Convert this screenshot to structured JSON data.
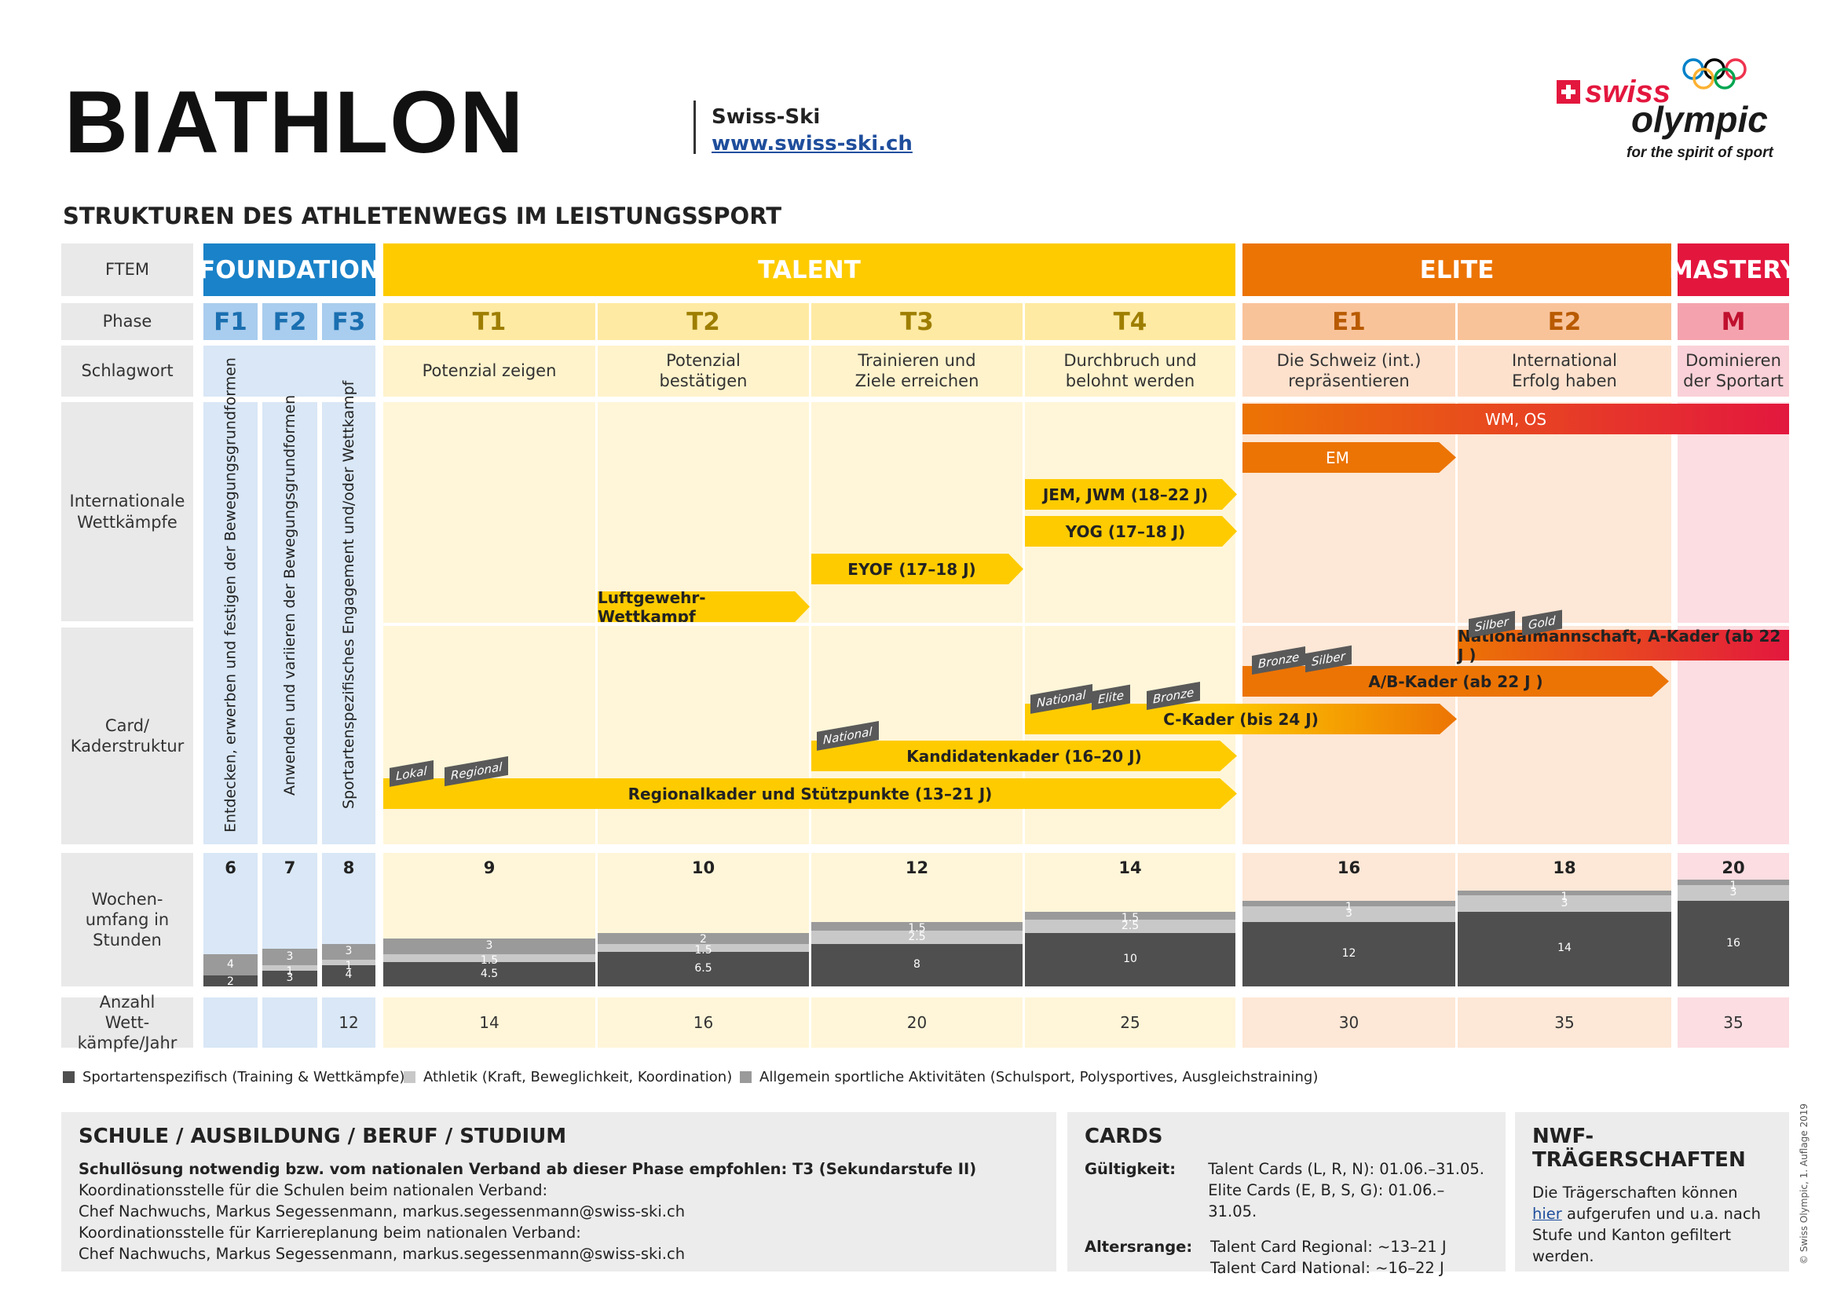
{
  "header": {
    "title": "BIATHLON",
    "org": "Swiss-Ski",
    "url": "www.swiss-ski.ch",
    "logo_swiss": "swiss",
    "logo_olympic": "olympic",
    "logo_tagline": "for the spirit of sport",
    "subtitle": "STRUKTUREN DES ATHLETENWEGS IM LEISTUNGSSPORT"
  },
  "row_labels": {
    "ftem": "FTEM",
    "phase": "Phase",
    "keyword": "Schlagwort",
    "international": "Internationale Wettkämpfe",
    "card": "Card/ Kaderstruktur",
    "weekly": "Wochen- umfang in Stunden",
    "competitions": "Anzahl Wett- kämpfe/Jahr"
  },
  "ftem": {
    "foundation": "FOUNDATION",
    "talent": "TALENT",
    "elite": "ELITE",
    "mastery": "MASTERY"
  },
  "phases": [
    "F1",
    "F2",
    "F3",
    "T1",
    "T2",
    "T3",
    "T4",
    "E1",
    "E2",
    "M"
  ],
  "keywords": {
    "T1": "Potenzial zeigen",
    "T2": "Potenzial bestätigen",
    "T3": "Trainieren und Ziele erreichen",
    "T4": "Durchbruch und belohnt werden",
    "E1": "Die Schweiz (int.) repräsentieren",
    "E2": "International Erfolg haben",
    "M": "Dominieren der Sportart"
  },
  "foundation_text": {
    "F1": "Entdecken, erwerben und festigen der Bewegungsgrundformen",
    "F2": "Anwenden und variieren der Bewegungsgrundformen",
    "F3": "Sportartenspezifisches Engagement und/oder Wettkampf"
  },
  "international_bars": {
    "wm": "WM, OS",
    "em": "EM",
    "jem": "JEM, JWM (18–22 J)",
    "yog": "YOG (17–18 J)",
    "eyof": "EYOF (17–18 J)",
    "luftgewehr": "Luftgewehr-Wettkampf"
  },
  "card_bars": {
    "national_team": "Nationalmannschaft, A-Kader (ab 22 J )",
    "ab": "A/B-Kader (ab 22 J )",
    "c": "C-Kader (bis 24 J)",
    "kandidaten": "Kandidatenkader (16–20 J)",
    "regional": "Regionalkader und Stützpunkte (13–21 J)"
  },
  "card_tags": {
    "silber1": "Silber",
    "gold": "Gold",
    "bronze1": "Bronze",
    "silber2": "Silber",
    "national1": "National",
    "elite": "Elite",
    "bronze2": "Bronze",
    "national2": "National",
    "lokal": "Lokal",
    "regional": "Regional"
  },
  "weekly_hours": {
    "F1": {
      "total": "6",
      "a": "2",
      "b": "",
      "c": "4"
    },
    "F2": {
      "total": "7",
      "a": "3",
      "b": "1",
      "c": "3"
    },
    "F3": {
      "total": "8",
      "a": "4",
      "b": "1",
      "c": "3"
    },
    "T1": {
      "total": "9",
      "a": "4.5",
      "b": "1.5",
      "c": "3"
    },
    "T2": {
      "total": "10",
      "a": "6.5",
      "b": "1.5",
      "c": "2"
    },
    "T3": {
      "total": "12",
      "a": "8",
      "b": "2.5",
      "c": "1.5"
    },
    "T4": {
      "total": "14",
      "a": "10",
      "b": "2.5",
      "c": "1.5"
    },
    "E1": {
      "total": "16",
      "a": "12",
      "b": "3",
      "c": "1"
    },
    "E2": {
      "total": "18",
      "a": "14",
      "b": "3",
      "c": "1"
    },
    "M": {
      "total": "20",
      "a": "16",
      "b": "3",
      "c": "1"
    }
  },
  "competitions": {
    "F1": "",
    "F2": "",
    "F3": "12",
    "T1": "14",
    "T2": "16",
    "T3": "20",
    "T4": "25",
    "E1": "30",
    "E2": "35",
    "M": "35"
  },
  "legend": {
    "specific": "Sportartenspezifisch (Training & Wettkämpfe)",
    "athletic": "Athletik (Kraft, Beweglichkeit, Koordination)",
    "general": "Allgemein sportliche Aktivitäten (Schulsport, Polysportives, Ausgleichstraining)"
  },
  "colors": {
    "foundation": "#1a82c8",
    "talent": "#fecb00",
    "elite": "#ec7404",
    "mastery": "#e3173e",
    "specific": "#4f4f4f",
    "athletic": "#c8c8c8",
    "general": "#9a9a9a"
  },
  "school": {
    "title": "SCHULE / AUSBILDUNG / BERUF / STUDIUM",
    "line1": "Schullösung notwendig bzw. vom nationalen Verband ab dieser Phase empfohlen: T3 (Sekundarstufe II)",
    "line2": "Koordinationsstelle für die Schulen beim nationalen Verband:",
    "line3": "Chef Nachwuchs, Markus Segessenmann, markus.segessenmann@swiss-ski.ch",
    "line4": "Koordinationsstelle für Karriereplanung beim nationalen Verband:",
    "line5": "Chef Nachwuchs, Markus Segessenmann, markus.segessenmann@swiss-ski.ch"
  },
  "cards": {
    "title": "CARDS",
    "validity_label": "Gültigkeit:",
    "validity1": "Talent Cards (L, R, N): 01.06.–31.05.",
    "validity2": "Elite Cards (E, B, S, G): 01.06.–31.05.",
    "age_label": "Altersrange:",
    "age1": "Talent Card Regional: ~13–21 J",
    "age2": "Talent Card National: ~16–22 J"
  },
  "nwf": {
    "title": "NWF-TRÄGERSCHAFTEN",
    "text_before": "Die Trägerschaften können",
    "link": "hier",
    "text_after": "aufgerufen und u.a. nach Stufe und Kanton gefiltert werden."
  },
  "copyright": "© Swiss Olympic, 1. Auflage 2019"
}
